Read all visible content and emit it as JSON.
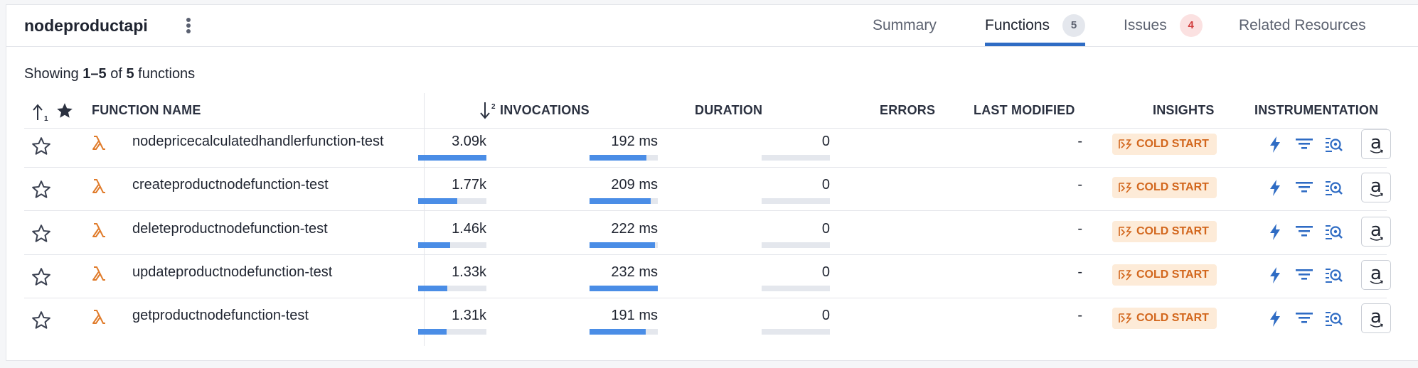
{
  "header": {
    "title": "nodeproductapi",
    "tabs": [
      {
        "label": "Summary",
        "badge": null
      },
      {
        "label": "Functions",
        "badge": "5"
      },
      {
        "label": "Issues",
        "badge": "4"
      },
      {
        "label": "Related Resources",
        "badge": null
      }
    ],
    "active_tab": "Functions"
  },
  "summary": {
    "prefix": "Showing ",
    "range": "1–5",
    "of": " of ",
    "total": "5",
    "suffix": " functions"
  },
  "columns": {
    "name": "FUNCTION NAME",
    "invocations": "INVOCATIONS",
    "duration": "DURATION",
    "errors": "ERRORS",
    "last_modified": "LAST MODIFIED",
    "insights": "INSIGHTS",
    "instrumentation": "INSTRUMENTATION",
    "sort_priority": "2"
  },
  "rows": [
    {
      "name": "nodepricecalculatedhandlerfunction-test",
      "invocations": "3.09k",
      "invocations_fraction": 1.0,
      "duration": "192 ms",
      "duration_fraction": 0.83,
      "errors": "0",
      "last_modified": "-",
      "insight": "COLD START"
    },
    {
      "name": "createproductnodefunction-test",
      "invocations": "1.77k",
      "invocations_fraction": 0.57,
      "duration": "209 ms",
      "duration_fraction": 0.9,
      "errors": "0",
      "last_modified": "-",
      "insight": "COLD START"
    },
    {
      "name": "deleteproductnodefunction-test",
      "invocations": "1.46k",
      "invocations_fraction": 0.47,
      "duration": "222 ms",
      "duration_fraction": 0.96,
      "errors": "0",
      "last_modified": "-",
      "insight": "COLD START"
    },
    {
      "name": "updateproductnodefunction-test",
      "invocations": "1.33k",
      "invocations_fraction": 0.43,
      "duration": "232 ms",
      "duration_fraction": 1.0,
      "errors": "0",
      "last_modified": "-",
      "insight": "COLD START"
    },
    {
      "name": "getproductnodefunction-test",
      "invocations": "1.31k",
      "invocations_fraction": 0.42,
      "duration": "191 ms",
      "duration_fraction": 0.82,
      "errors": "0",
      "last_modified": "-",
      "insight": "COLD START"
    }
  ],
  "icons": {
    "row_star": "star-outline-icon",
    "function_type": "lambda-icon",
    "insight": "cold-start-icon",
    "instrumentation": [
      "bolt-icon",
      "filter-list-icon",
      "search-trace-icon",
      "amazon-icon"
    ]
  },
  "colors": {
    "accent": "#2f6cc4",
    "bar": "#4a8de6",
    "cold_start": "#d2661c",
    "issue_badge": "#d13c3c",
    "lambda": "#e07b2a"
  }
}
